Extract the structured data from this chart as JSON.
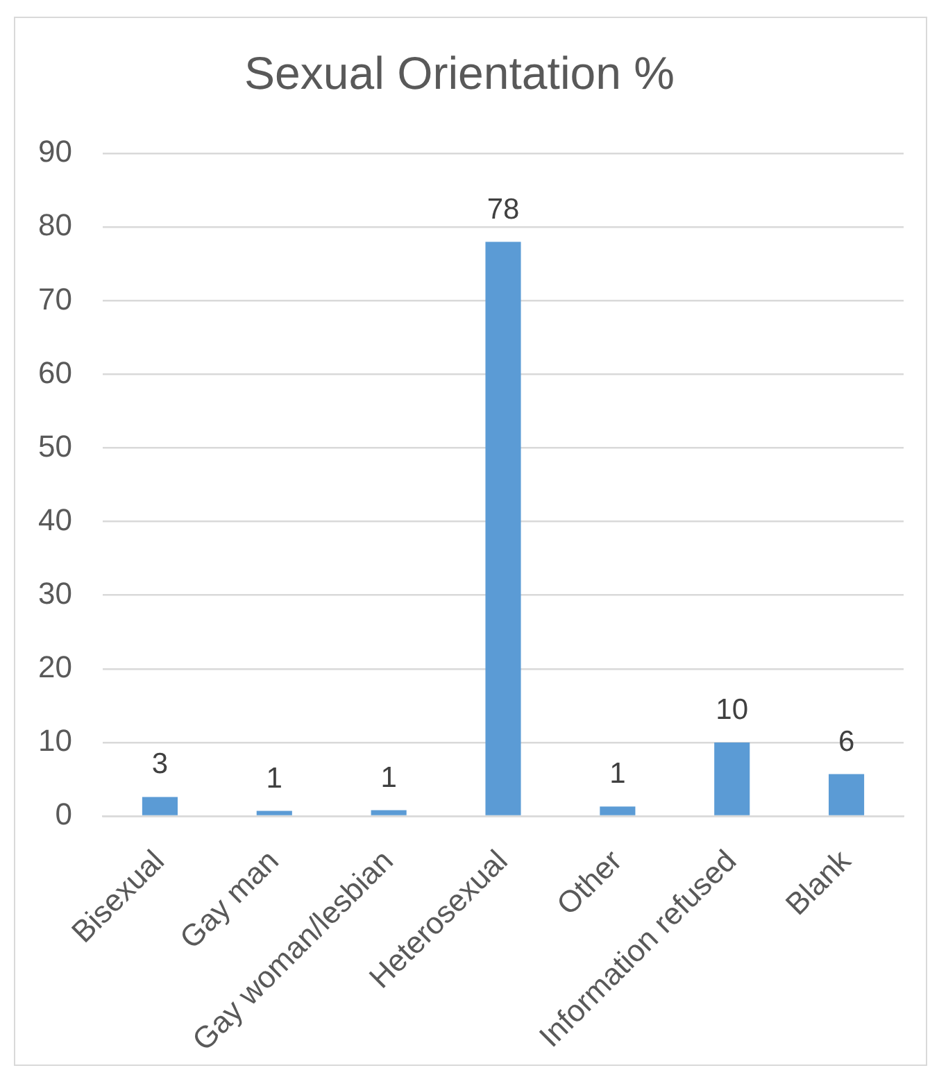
{
  "chart_data": {
    "type": "bar",
    "title": "Sexual Orientation %",
    "categories": [
      "Bisexual",
      "Gay man",
      "Gay woman/lesbian",
      "Heterosexual",
      "Other",
      "Information refused",
      "Blank"
    ],
    "values": [
      2.6,
      0.7,
      0.8,
      78.0,
      1.3,
      10.0,
      5.7
    ],
    "value_labels": [
      "3",
      "1",
      "1",
      "78",
      "1",
      "10",
      "6"
    ],
    "color": "#5b9bd5",
    "ylim": [
      0,
      90
    ],
    "yticks": [
      0,
      10,
      20,
      30,
      40,
      50,
      60,
      70,
      80,
      90
    ],
    "grid": "y"
  }
}
